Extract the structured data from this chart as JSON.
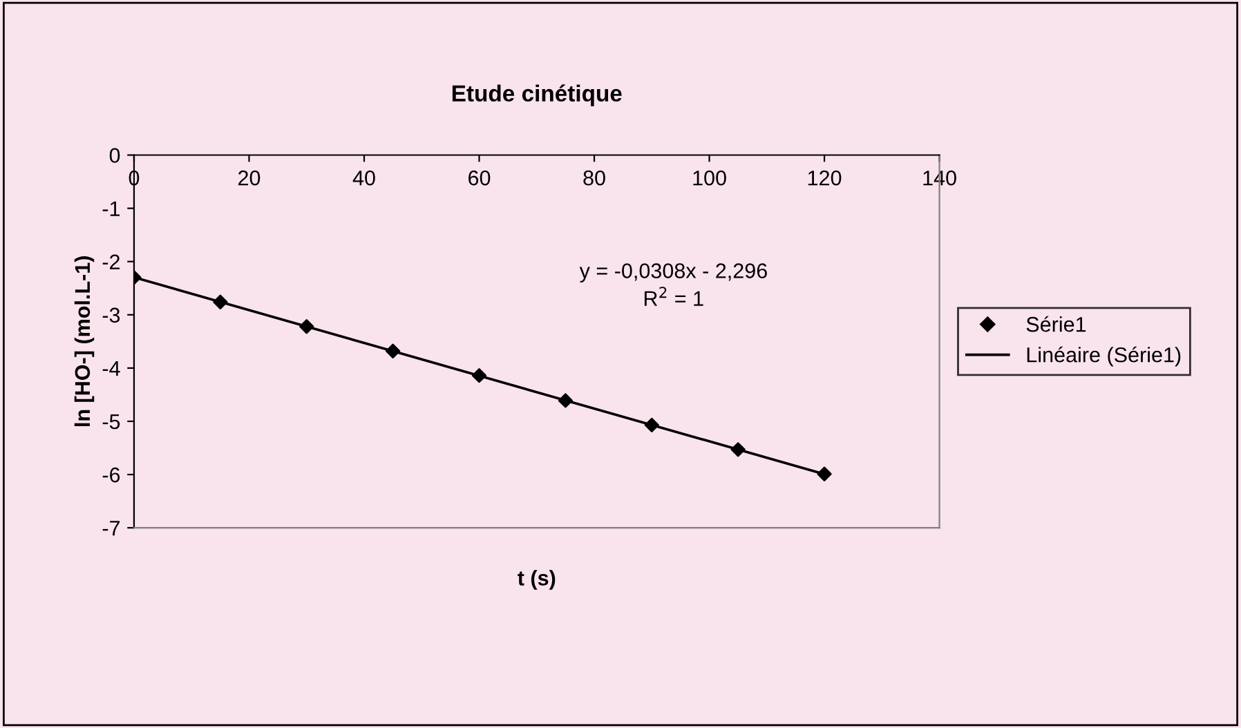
{
  "chart_data": {
    "type": "scatter",
    "title": "Etude cinétique",
    "xlabel": "t (s)",
    "ylabel": "ln [HO-] (mol.L-1)",
    "x": [
      0,
      15,
      30,
      45,
      60,
      75,
      90,
      105,
      120
    ],
    "series": [
      {
        "name": "Série1",
        "color": "#000000",
        "marker": "diamond",
        "values": [
          -2.3,
          -2.76,
          -3.22,
          -3.68,
          -4.14,
          -4.61,
          -5.07,
          -5.53,
          -5.99
        ]
      },
      {
        "name": "Linéaire (Série1)",
        "type": "line",
        "color": "#000000",
        "line_style": "solid",
        "marker": "none",
        "x": [
          0,
          120
        ],
        "values": [
          -2.296,
          -5.992
        ]
      }
    ],
    "xlim": [
      0,
      140
    ],
    "xticks": [
      0,
      20,
      40,
      60,
      80,
      100,
      120,
      140
    ],
    "ylim": [
      -7,
      0
    ],
    "yticks": [
      -7,
      -6,
      -5,
      -4,
      -3,
      -2,
      -1,
      0
    ],
    "grid": false,
    "legend": "right",
    "annotations": [
      "y = -0,0308x - 2,296",
      "R$^{2}$ = 1"
    ]
  }
}
